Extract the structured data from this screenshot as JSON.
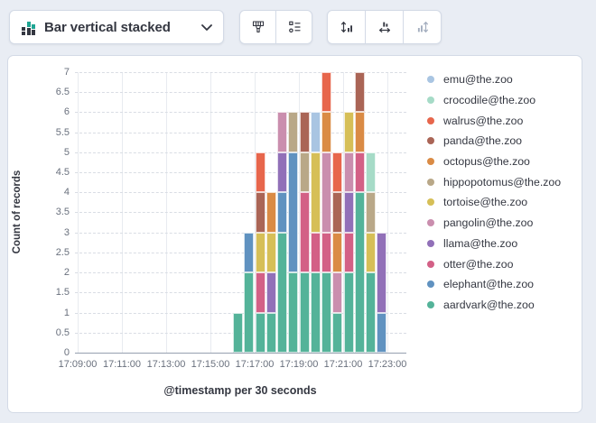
{
  "toolbar": {
    "chart_type": {
      "label": "Bar vertical stacked"
    },
    "style_buttons": [
      {
        "name": "brush"
      },
      {
        "name": "legend-settings"
      }
    ],
    "axis_buttons": [
      {
        "name": "left-axis",
        "disabled": false
      },
      {
        "name": "bottom-axis",
        "disabled": false
      },
      {
        "name": "right-axis",
        "disabled": true
      }
    ]
  },
  "chart_data": {
    "type": "bar",
    "stacked": true,
    "orientation": "vertical",
    "xlabel": "@timestamp per 30 seconds",
    "ylabel": "Count of records",
    "ylim": [
      0,
      7
    ],
    "grid": true,
    "legend_position": "right",
    "y_ticks": [
      "0",
      "0.5",
      "1",
      "1.5",
      "2",
      "2.5",
      "3",
      "3.5",
      "4",
      "4.5",
      "5",
      "5.5",
      "6",
      "6.5",
      "7"
    ],
    "x_ticks": [
      "17:09:00",
      "17:11:00",
      "17:13:00",
      "17:15:00",
      "17:17:00",
      "17:19:00",
      "17:21:00",
      "17:23:00"
    ],
    "bucket_seconds": 30,
    "buckets": [
      "17:16:00",
      "17:16:30",
      "17:17:00",
      "17:17:30",
      "17:18:00",
      "17:18:30",
      "17:19:00",
      "17:19:30",
      "17:20:00",
      "17:20:30",
      "17:21:00",
      "17:21:30",
      "17:22:00",
      "17:22:30"
    ],
    "series": [
      {
        "name": "aardvark@the.zoo",
        "color": "#54B399",
        "values": [
          1,
          2,
          1,
          1,
          3,
          2,
          2,
          2,
          2,
          1,
          2,
          4,
          2,
          0
        ]
      },
      {
        "name": "elephant@the.zoo",
        "color": "#6092C0",
        "values": [
          0,
          1,
          0,
          0,
          1,
          3,
          0,
          0,
          0,
          0,
          0,
          0,
          0,
          1
        ]
      },
      {
        "name": "otter@the.zoo",
        "color": "#D36086",
        "values": [
          0,
          0,
          1,
          0,
          0,
          0,
          2,
          1,
          1,
          0,
          1,
          1,
          0,
          0
        ]
      },
      {
        "name": "llama@the.zoo",
        "color": "#9170B8",
        "values": [
          0,
          0,
          0,
          1,
          1,
          0,
          0,
          0,
          0,
          0,
          1,
          0,
          0,
          2
        ]
      },
      {
        "name": "pangolin@the.zoo",
        "color": "#CA8EAE",
        "values": [
          0,
          0,
          0,
          0,
          1,
          0,
          0,
          0,
          2,
          1,
          1,
          0,
          0,
          0
        ]
      },
      {
        "name": "tortoise@the.zoo",
        "color": "#D6BF57",
        "values": [
          0,
          0,
          1,
          1,
          0,
          0,
          0,
          2,
          0,
          0,
          1,
          0,
          1,
          0
        ]
      },
      {
        "name": "hippopotomus@the.zoo",
        "color": "#B9A888",
        "values": [
          0,
          0,
          0,
          0,
          0,
          1,
          1,
          0,
          0,
          0,
          0,
          0,
          1,
          0
        ]
      },
      {
        "name": "octopus@the.zoo",
        "color": "#DA8B45",
        "values": [
          0,
          0,
          0,
          1,
          0,
          0,
          0,
          0,
          1,
          1,
          0,
          1,
          0,
          0
        ]
      },
      {
        "name": "panda@the.zoo",
        "color": "#AA6556",
        "values": [
          0,
          0,
          1,
          0,
          0,
          0,
          1,
          0,
          0,
          1,
          0,
          1,
          0,
          0
        ]
      },
      {
        "name": "walrus@the.zoo",
        "color": "#E7664C",
        "values": [
          0,
          0,
          1,
          0,
          0,
          0,
          0,
          0,
          1,
          1,
          0,
          0,
          0,
          0
        ]
      },
      {
        "name": "crocodile@the.zoo",
        "color": "#A6DBC7",
        "values": [
          0,
          0,
          0,
          0,
          0,
          0,
          0,
          0,
          0,
          0,
          0,
          0,
          1,
          0
        ]
      },
      {
        "name": "emu@the.zoo",
        "color": "#A9C5E2",
        "values": [
          0,
          0,
          0,
          0,
          0,
          0,
          0,
          1,
          0,
          0,
          0,
          0,
          0,
          0
        ]
      }
    ],
    "legend_order": [
      "emu@the.zoo",
      "crocodile@the.zoo",
      "walrus@the.zoo",
      "panda@the.zoo",
      "octopus@the.zoo",
      "hippopotomus@the.zoo",
      "tortoise@the.zoo",
      "pangolin@the.zoo",
      "llama@the.zoo",
      "otter@the.zoo",
      "elephant@the.zoo",
      "aardvark@the.zoo"
    ],
    "icon_colors": {
      "green": "#1FA593",
      "dark": "#343741"
    }
  }
}
